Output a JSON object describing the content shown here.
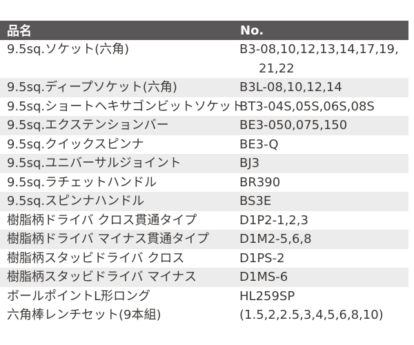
{
  "table": {
    "headers": {
      "name": "品名",
      "no": "No."
    },
    "rows": [
      {
        "name": "9.5sq.ソケット(六角)",
        "no": "B3-08,10,12,13,14,17,19,",
        "no2": "21,22"
      },
      {
        "name": "9.5sq.ディープソケット(六角)",
        "no": "B3L-08,10,12,14"
      },
      {
        "name": "9.5sq.ショートヘキサゴンビットソケット",
        "no": "BT3-04S,05S,06S,08S"
      },
      {
        "name": "9.5sq.エクステンションバー",
        "no": "BE3-050,075,150"
      },
      {
        "name": "9.5sq.クイックスピンナ",
        "no": "BE3-Q"
      },
      {
        "name": "9.5sq.ユニバーサルジョイント",
        "no": "BJ3"
      },
      {
        "name": "9.5sq.ラチェットハンドル",
        "no": "BR390"
      },
      {
        "name": "9.5sq.スピンナハンドル",
        "no": "BS3E"
      },
      {
        "name": "樹脂柄ドライバ クロス貫通タイプ",
        "no": "D1P2-1,2,3"
      },
      {
        "name": "樹脂柄ドライバ マイナス貫通タイプ",
        "no": "D1M2-5,6,8"
      },
      {
        "name": "樹脂柄スタッビドライバ クロス",
        "no": "D1PS-2"
      },
      {
        "name": "樹脂柄スタッビドライバ マイナス",
        "no": "D1MS-6"
      },
      {
        "name": "ボールポイントL形ロング",
        "no": "HL259SP"
      },
      {
        "name": "六角棒レンチセット(9本組)",
        "no": "(1.5,2,2.5,3,4,5,6,8,10)"
      }
    ]
  },
  "colors": {
    "header_bg": "#595757",
    "header_text": "#ffffff",
    "row_stripe": "#ececec",
    "text": "#3b3836",
    "background": "#ffffff"
  }
}
